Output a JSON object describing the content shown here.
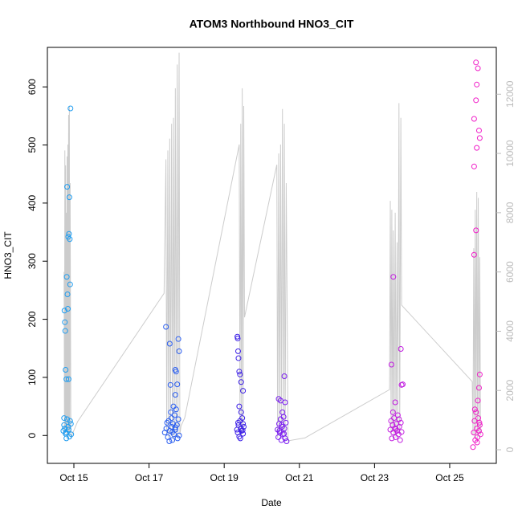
{
  "chart_data": {
    "type": "scatter",
    "title": "ATOM3 Northbound HNO3_CIT",
    "x_label": "Date",
    "y_label": "HNO3_CIT",
    "xlim": [
      14.295,
      26.24
    ],
    "xticks": [
      {
        "value": 15,
        "label": "Oct 15"
      },
      {
        "value": 17,
        "label": "Oct 17"
      },
      {
        "value": 19,
        "label": "Oct 19"
      },
      {
        "value": 21,
        "label": "Oct 21"
      },
      {
        "value": 23,
        "label": "Oct 23"
      },
      {
        "value": 25,
        "label": "Oct 25"
      }
    ],
    "ylim": [
      -48,
      668
    ],
    "yticks": [
      0,
      100,
      200,
      300,
      400,
      500,
      600
    ],
    "y2lim": [
      -460,
      13580
    ],
    "y2ticks": [
      0,
      2000,
      4000,
      6000,
      8000,
      10000,
      12000
    ],
    "y2color": "#bbbbbb",
    "series": [
      {
        "color": "#1e9cf0",
        "x": [
          14.72,
          14.74,
          14.75,
          14.76,
          14.77,
          14.78,
          14.79,
          14.8,
          14.81,
          14.82,
          14.83,
          14.84,
          14.85,
          14.86,
          14.87,
          14.88,
          14.89,
          14.9,
          14.91,
          14.92,
          14.93,
          14.8,
          14.85,
          14.9,
          14.76,
          14.78,
          14.82,
          14.86,
          14.88,
          14.74
        ],
        "values": [
          8,
          30,
          215,
          195,
          180,
          113,
          5,
          97,
          273,
          428,
          243,
          218,
          342,
          97,
          347,
          410,
          338,
          260,
          563,
          20,
          2,
          -5,
          15,
          25,
          12,
          3,
          28,
          10,
          -2,
          18
        ]
      },
      {
        "color": "#2a5ef0",
        "x": [
          17.45,
          17.55,
          17.57,
          17.7,
          17.72,
          17.75,
          17.78,
          17.8,
          17.7,
          17.65,
          17.6,
          17.42,
          17.46,
          17.5,
          17.52,
          17.55,
          17.58,
          17.6,
          17.62,
          17.64,
          17.66,
          17.68,
          17.7,
          17.72,
          17.74,
          17.76,
          17.78,
          17.8,
          17.48,
          17.54,
          17.62,
          17.7
        ],
        "values": [
          187,
          158,
          87,
          113,
          110,
          88,
          166,
          145,
          70,
          50,
          30,
          5,
          12,
          -3,
          25,
          8,
          40,
          15,
          -8,
          20,
          2,
          35,
          10,
          45,
          18,
          -5,
          28,
          0,
          22,
          -10,
          6,
          14
        ]
      },
      {
        "color": "#3b1ee6",
        "x": [
          19.35,
          19.36,
          19.37,
          19.38,
          19.4,
          19.42,
          19.45,
          19.5,
          19.4,
          19.45,
          19.5,
          19.34,
          19.36,
          19.38,
          19.4,
          19.42,
          19.44,
          19.46,
          19.48,
          19.5,
          19.52,
          19.37,
          19.43,
          19.49
        ],
        "values": [
          170,
          167,
          145,
          133,
          110,
          105,
          92,
          77,
          50,
          40,
          20,
          10,
          5,
          18,
          -2,
          25,
          12,
          8,
          30,
          3,
          15,
          22,
          -5,
          9
        ]
      },
      {
        "color": "#7a1cf0",
        "x": [
          20.45,
          20.5,
          20.6,
          20.62,
          20.55,
          20.42,
          20.44,
          20.46,
          20.48,
          20.5,
          20.52,
          20.54,
          20.56,
          20.58,
          20.6,
          20.62,
          20.64,
          20.66,
          20.47,
          20.53,
          20.59
        ],
        "values": [
          63,
          60,
          102,
          57,
          40,
          10,
          -3,
          20,
          5,
          28,
          -8,
          15,
          2,
          32,
          12,
          -5,
          22,
          -10,
          8,
          18,
          3
        ]
      },
      {
        "color": "#c21de0",
        "x": [
          23.45,
          23.5,
          23.55,
          23.7,
          23.75,
          23.72,
          23.42,
          23.44,
          23.46,
          23.48,
          23.5,
          23.52,
          23.54,
          23.56,
          23.58,
          23.6,
          23.62,
          23.64,
          23.66,
          23.68,
          23.7,
          23.72,
          23.49,
          23.57,
          23.65
        ],
        "values": [
          122,
          273,
          57,
          149,
          88,
          87,
          10,
          25,
          -5,
          18,
          5,
          30,
          12,
          -3,
          20,
          8,
          35,
          2,
          15,
          -8,
          22,
          6,
          40,
          11,
          28
        ]
      },
      {
        "color": "#f01ec8",
        "x": [
          25.7,
          25.75,
          25.72,
          25.7,
          25.65,
          25.78,
          25.8,
          25.72,
          25.65,
          25.7,
          25.65,
          25.8,
          25.78,
          25.75,
          25.62,
          25.64,
          25.66,
          25.68,
          25.7,
          25.72,
          25.74,
          25.76,
          25.78,
          25.8,
          25.82,
          25.67,
          25.73,
          25.79
        ],
        "values": [
          642,
          632,
          604,
          577,
          545,
          525,
          512,
          495,
          463,
          353,
          311,
          105,
          82,
          60,
          -20,
          5,
          25,
          -8,
          40,
          12,
          -3,
          30,
          8,
          18,
          2,
          45,
          -12,
          22
        ]
      },
      {
        "type": "line",
        "axis": "y2",
        "color": "#cccccc",
        "x": [
          14.74,
          14.75,
          14.76,
          14.77,
          14.78,
          14.79,
          14.8,
          14.81,
          14.82,
          14.83,
          14.84,
          14.85,
          14.86,
          14.87,
          14.88,
          14.89,
          14.9,
          14.92,
          14.95,
          15.1,
          17.4,
          17.45,
          17.47,
          17.5,
          17.52,
          17.55,
          17.57,
          17.6,
          17.62,
          17.65,
          17.67,
          17.7,
          17.72,
          17.75,
          17.77,
          17.8,
          17.82,
          17.85,
          17.95,
          19.4,
          19.42,
          19.44,
          19.46,
          19.48,
          19.5,
          19.52,
          19.54,
          20.4,
          20.42,
          20.45,
          20.47,
          20.5,
          20.52,
          20.55,
          20.57,
          20.6,
          20.62,
          20.65,
          20.7,
          21.15,
          23.4,
          23.42,
          23.44,
          23.46,
          23.48,
          23.5,
          23.52,
          23.55,
          23.57,
          23.6,
          23.62,
          23.65,
          23.67,
          23.7,
          23.72,
          25.6,
          25.62,
          25.64,
          25.66,
          25.68,
          25.7,
          25.72,
          25.74,
          25.76,
          25.78,
          25.8,
          25.82
        ],
        "values": [
          6000,
          500,
          10100,
          600,
          9600,
          800,
          8000,
          500,
          9900,
          700,
          10300,
          400,
          11300,
          500,
          11600,
          600,
          9000,
          400,
          500,
          950,
          5280,
          9800,
          500,
          10100,
          400,
          10500,
          500,
          11000,
          400,
          11200,
          300,
          12200,
          500,
          13000,
          400,
          13400,
          500,
          800,
          1080,
          10300,
          600,
          11000,
          500,
          12200,
          700,
          11600,
          4470,
          9620,
          400,
          10000,
          500,
          10300,
          600,
          11500,
          500,
          11000,
          400,
          9000,
          300,
          400,
          2030,
          8400,
          500,
          8100,
          600,
          7400,
          500,
          8000,
          400,
          7000,
          600,
          11700,
          500,
          11200,
          4880,
          2300,
          500,
          6800,
          400,
          8100,
          500,
          8700,
          400,
          8500,
          600,
          6500,
          500
        ]
      }
    ]
  }
}
